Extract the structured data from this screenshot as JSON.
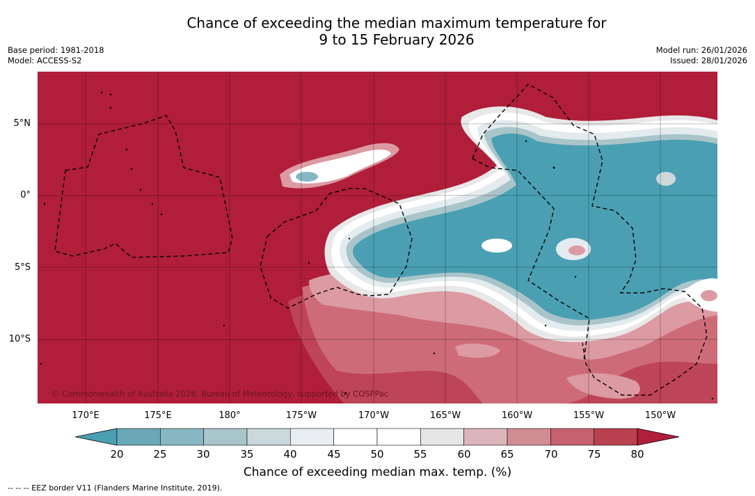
{
  "title": {
    "line1": "Chance of exceeding the median maximum temperature for",
    "line2": "9 to 15 February 2026"
  },
  "meta_left": {
    "base_period": "Base period: 1981-2018",
    "model": "Model: ACCESS-S2"
  },
  "meta_right": {
    "model_run": "Model run: 26/01/2026",
    "issued": "Issued: 28/01/2026"
  },
  "map": {
    "copyright": "© Commonwealth of Australia 2026, Bureau of Meteorology, supported by COSPPac",
    "lon_labels": [
      "170°E",
      "175°E",
      "180°",
      "175°W",
      "170°W",
      "165°W",
      "160°W",
      "155°W",
      "150°W"
    ],
    "lat_labels": [
      "5°N",
      "0°",
      "5°S",
      "10°S"
    ],
    "colors": {
      "bg": "#b01e3a",
      "r75": "#be4457",
      "r70": "#cd6c78",
      "r65": "#dc9aa3",
      "w60": "#e8e8e8",
      "w55": "#ffffff",
      "b40": "#e3ebee",
      "b35": "#cbd7da",
      "b30": "#a9c5ca",
      "b25": "#86b8c3",
      "b20": "#4aa0b2"
    }
  },
  "colorbar": {
    "ticks": [
      "20",
      "25",
      "30",
      "35",
      "40",
      "45",
      "50",
      "55",
      "60",
      "65",
      "70",
      "75",
      "80"
    ],
    "segment_colors": [
      "#6aa8b7",
      "#88b8c3",
      "#a8c5ca",
      "#cad7db",
      "#e8eef1",
      "#ffffff",
      "#ffffff",
      "#e6e6e6",
      "#dcb4b9",
      "#d28c94",
      "#c6616e",
      "#b9404f"
    ],
    "low_arrow_color": "#4aa0b2",
    "high_arrow_color": "#b01e3a",
    "label": "Chance of exceeding median max. temp. (%)"
  },
  "footnote": "--  --  -- EEZ border V11 (Flanders Marine Institute, 2019)."
}
